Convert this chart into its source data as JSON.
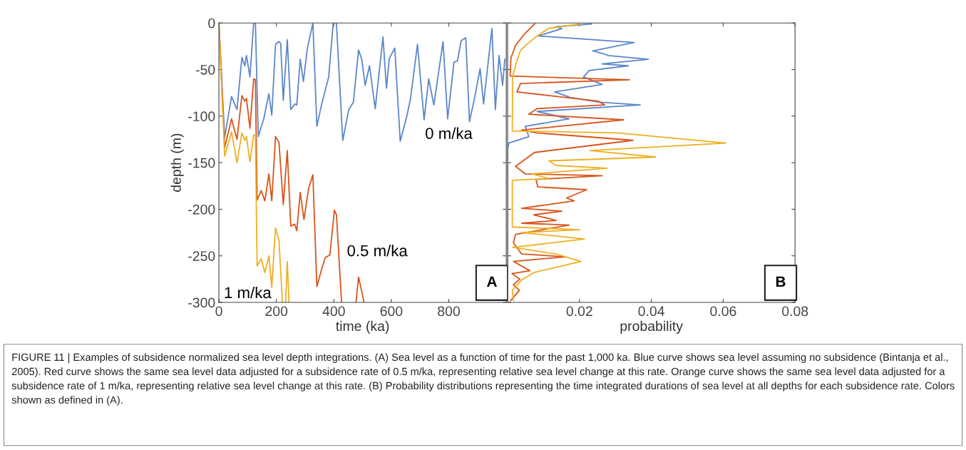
{
  "chart_data": [
    {
      "type": "line",
      "xlabel": "time (ka)",
      "ylabel": "depth (m)",
      "xlim": [
        0,
        1000
      ],
      "ylim": [
        -300,
        0
      ],
      "xticks": [
        0,
        200,
        400,
        600,
        800
      ],
      "yticks": [
        -300,
        -250,
        -200,
        -150,
        -100,
        -50,
        0
      ],
      "grid": false,
      "legend": false,
      "line_style": "solid",
      "marker": "none",
      "series": [
        {
          "name": "0 m/ka",
          "color": "#5b87c9",
          "x": [
            0,
            20,
            44,
            63,
            80,
            90,
            96,
            108,
            121,
            127,
            137,
            156,
            174,
            184,
            197,
            209,
            215,
            224,
            238,
            250,
            264,
            271,
            283,
            294,
            308,
            327,
            341,
            357,
            382,
            398,
            409,
            431,
            452,
            468,
            486,
            497,
            509,
            524,
            544,
            571,
            583,
            593,
            612,
            631,
            654,
            667,
            691,
            714,
            730,
            748,
            780,
            796,
            818,
            830,
            843,
            859,
            872,
            888,
            909,
            921,
            950,
            962,
            975,
            987,
            995
          ],
          "values": [
            0,
            -123,
            -79,
            -93,
            -37,
            -46,
            -35,
            -58,
            0,
            0,
            -122,
            -103,
            -76,
            -99,
            -23,
            -20,
            -22,
            -83,
            -18,
            -93,
            -87,
            -88,
            -39,
            -63,
            -27,
            0,
            -111,
            -88,
            -58,
            0,
            0,
            -126,
            -93,
            -85,
            -29,
            -39,
            -67,
            -46,
            -92,
            -15,
            -70,
            -38,
            -27,
            -127,
            -100,
            -81,
            -23,
            -104,
            -60,
            -88,
            -20,
            -103,
            -42,
            -41,
            -19,
            -16,
            -106,
            -83,
            -49,
            -87,
            -6,
            -93,
            -35,
            -67,
            -39
          ]
        },
        {
          "name": "0.5 m/ka",
          "color": "#d9541a",
          "x": [
            0,
            20,
            44,
            63,
            80,
            90,
            96,
            108,
            121,
            127,
            133,
            147,
            160,
            174,
            184,
            197,
            209,
            224,
            238,
            250,
            264,
            271,
            283,
            296,
            312,
            327,
            341,
            357,
            370,
            386,
            402,
            409,
            427,
            430,
            477,
            486,
            497,
            505
          ],
          "values": [
            0,
            -134,
            -103,
            -125,
            -78,
            -84,
            -81,
            -113,
            -60,
            -61,
            -190,
            -180,
            -191,
            -162,
            -191,
            -122,
            -128,
            -195,
            -137,
            -218,
            -216,
            -223,
            -182,
            -211,
            -178,
            -163,
            -283,
            -265,
            -252,
            -249,
            -201,
            -206,
            -300,
            null,
            -300,
            -273,
            -288,
            -300
          ]
        },
        {
          "name": "1 m/ka",
          "color": "#eeb023",
          "x": [
            0,
            20,
            44,
            63,
            80,
            90,
            96,
            108,
            121,
            127,
            133,
            147,
            160,
            174,
            184,
            197,
            209,
            221,
            226,
            232,
            238,
            244
          ],
          "values": [
            0,
            -143,
            -117,
            -150,
            -118,
            -126,
            -122,
            -149,
            -120,
            -121,
            -261,
            -253,
            -268,
            -250,
            -284,
            -220,
            -233,
            -300,
            null,
            -300,
            -256,
            -300
          ]
        }
      ],
      "annotations": [
        "A",
        "FIGURE 11 | Examples of subsidence normalized sea level depth integrations. (A) Sea level as a function of time for the past 1,000 ka. Blue curve shows sea level assuming no subsidence (Bintanja et al., 2005). Red curve shows the same sea level data adjusted for a subsidence rate of 0.5 m/ka, representing relative sea level change at this rate. Orange curve shows the same sea level data adjusted for a subsidence rate of 1 m/ka, representing relative sea level change at this rate. (B) Probability distributions representing the time integrated durations of sea level at all depths for each subsidence rate. Colors shown as defined in (A)."
      ]
    },
    {
      "type": "line",
      "xlabel": "probability",
      "xlim": [
        0,
        0.08
      ],
      "ylim": [
        -300,
        0
      ],
      "xticks": [
        0.02,
        0.04,
        0.06,
        0.08
      ],
      "yticks": [
        -300,
        -250,
        -200,
        -150,
        -100,
        -50,
        0
      ],
      "tick_labels": "x",
      "grid": false,
      "legend": false,
      "line_style": "solid",
      "marker": "none",
      "series": [
        {
          "color": "#5b87c9",
          "x": [
            0.0234,
            0.0135,
            0.0151,
            0.0085,
            0.0352,
            0.0237,
            0.0267,
            0.028,
            0.0392,
            0.0263,
            0.0336,
            0.0227,
            0.0211,
            0.0263,
            0.0131,
            0.0174,
            0.0253,
            0.0369,
            0.0082,
            0.0171,
            0.0049,
            0.0059,
            0.0003,
            0,
            0
          ],
          "values": [
            -1,
            -4,
            -6,
            -14,
            -21,
            -30,
            -33,
            -35,
            -39,
            -44,
            -46,
            -51,
            -58,
            -66,
            -74,
            -80,
            -85,
            -88,
            -95,
            -103,
            -111,
            -122,
            -129,
            -135,
            -300
          ]
        },
        {
          "color": "#d9541a",
          "x": [
            0.0075,
            0.0049,
            0.0022,
            0.0009,
            0.0007,
            0.0339,
            0.0036,
            0.0026,
            0.0253,
            0.027,
            0.0082,
            0.0059,
            0.0323,
            0.0039,
            0.0081,
            0.0349,
            0.0075,
            0.0032,
            0.0022,
            0.0049,
            0.0263,
            0.0079,
            0.0084,
            0.022,
            0.0164,
            0.0185,
            0.0039,
            0.0151,
            0.0073,
            0.0135,
            0.0039,
            0.0171,
            0.0022,
            0.0016,
            0.0039,
            0.0161,
            0.0016,
            0.0062,
            0.0012,
            0.0034,
            0.0016,
            0.0033,
            0.0008
          ],
          "values": [
            -1,
            -11,
            -24,
            -38,
            -57,
            -61,
            -65,
            -74,
            -84,
            -88,
            -92,
            -98,
            -104,
            -115,
            -118,
            -126,
            -139,
            -151,
            -154,
            -162,
            -164,
            -168,
            -176,
            -179,
            -188,
            -191,
            -199,
            -202,
            -206,
            -212,
            -215,
            -217,
            -227,
            -236,
            -248,
            -251,
            -256,
            -266,
            -269,
            -275,
            -281,
            -287,
            -298
          ]
        },
        {
          "color": "#eeb023",
          "x": [
            0.0201,
            0.0113,
            0.0075,
            0.0036,
            0.0025,
            0.0014,
            0.0013,
            0.0306,
            0.0607,
            0.023,
            0.0412,
            0.0115,
            0.0135,
            0.0277,
            0.0068,
            0.0115,
            0.0013,
            0.0013,
            0.0201,
            0.0039,
            0.0214,
            0.0014,
            0.0135,
            0.0204,
            0.0073,
            0.0039,
            0.0013,
            0.0016
          ],
          "values": [
            -1,
            -6,
            -16,
            -29,
            -42,
            -57,
            -116,
            -118,
            -129,
            -137,
            -144,
            -148,
            -153,
            -156,
            -162,
            -167,
            -169,
            -219,
            -222,
            -225,
            -232,
            -241,
            -248,
            -256,
            -268,
            -276,
            -287,
            -298
          ]
        }
      ],
      "annotations": [
        "B"
      ]
    }
  ]
}
